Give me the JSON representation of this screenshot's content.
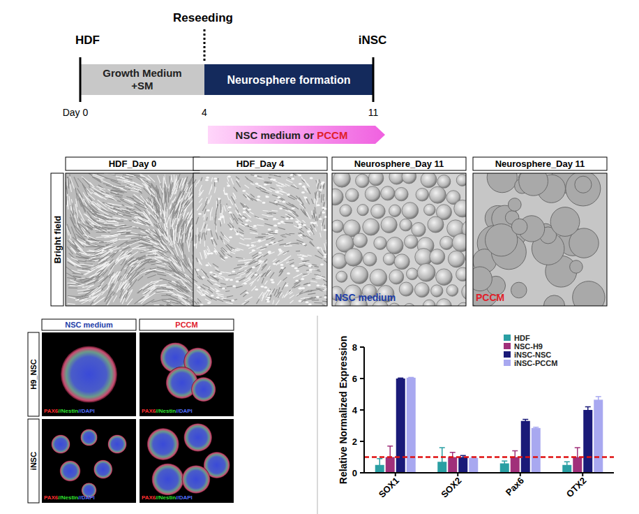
{
  "timeline": {
    "start_label": "HDF",
    "end_label": "iNSC",
    "reseed_label": "Reseeding",
    "stages": [
      {
        "lines": [
          "Growth Medium",
          "+SM"
        ]
      },
      {
        "lines": [
          "Neurosphere formation"
        ]
      }
    ],
    "days": [
      "Day 0",
      "4",
      "11"
    ],
    "medium": [
      "NSC medium or ",
      "PCCM"
    ]
  },
  "bright_field": {
    "row_label": "Bright field",
    "panels": [
      {
        "title": "HDF_Day 0"
      },
      {
        "title": "HDF_Day 4"
      },
      {
        "title": "Neurosphere_Day 11",
        "caption": "NSC medium"
      },
      {
        "title": "Neurosphere_Day 11",
        "caption": "PCCM"
      }
    ]
  },
  "immunofluorescence": {
    "columns": [
      "NSC medium",
      "PCCM"
    ],
    "rows": [
      "H9_NSC",
      "iNSC"
    ],
    "stain": [
      "PAX6",
      "//Nestin",
      "//DAPI"
    ]
  },
  "chart_data": {
    "type": "bar",
    "y_label": "Relative Normalized Expression",
    "categories": [
      "SOX1",
      "SOX2",
      "Pax6",
      "OTX2"
    ],
    "series": [
      {
        "name": "HDF",
        "color": "#2a9fa3",
        "values": [
          0.5,
          0.7,
          0.6,
          0.5
        ],
        "errors": [
          0.4,
          0.9,
          0.15,
          0.2
        ]
      },
      {
        "name": "NSC-H9",
        "color": "#a0307a",
        "values": [
          1.0,
          1.0,
          1.0,
          1.0
        ],
        "errors": [
          0.7,
          0.3,
          0.4,
          0.6
        ]
      },
      {
        "name": "iNSC-NSC",
        "color": "#1a1a78",
        "values": [
          6.0,
          1.0,
          3.3,
          4.0
        ],
        "errors": [
          0.03,
          0.1,
          0.1,
          0.2
        ]
      },
      {
        "name": "iNSC-PCCM",
        "color": "#a8a8f0",
        "values": [
          6.05,
          0.95,
          2.85,
          4.65
        ],
        "errors": [
          0.02,
          0.05,
          0.05,
          0.2
        ]
      }
    ],
    "reference_line": 1,
    "ylim": [
      0,
      8
    ],
    "yticks": [
      0,
      2,
      4,
      6,
      8
    ],
    "grid": false,
    "legend": "top-right"
  }
}
